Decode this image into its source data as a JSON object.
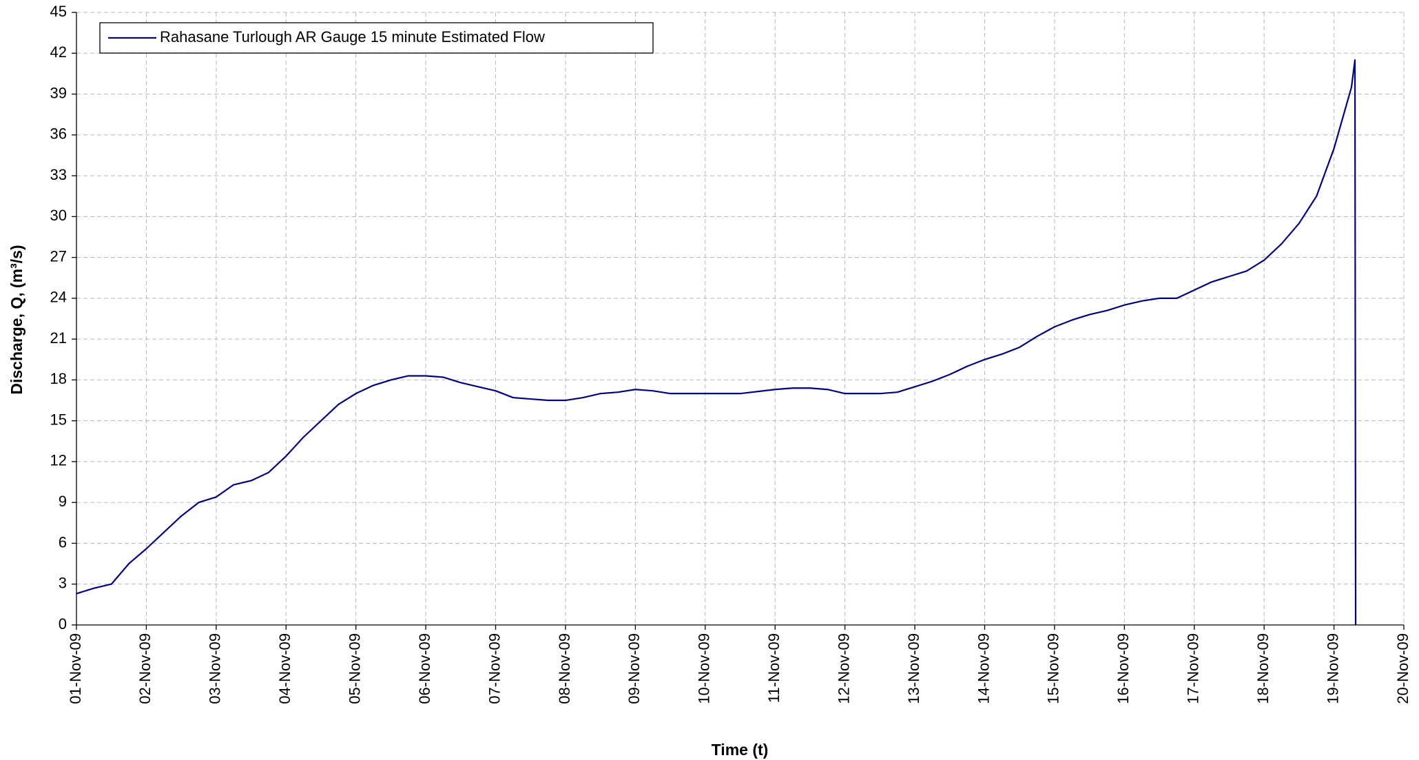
{
  "chart_data": {
    "type": "line",
    "x_label": "Time (t)",
    "y_label": "Discharge, Q, (m³/s)",
    "x": [
      1,
      1.25,
      1.5,
      1.75,
      2,
      2.25,
      2.5,
      2.75,
      3,
      3.25,
      3.5,
      3.75,
      4,
      4.25,
      4.5,
      4.75,
      5,
      5.25,
      5.5,
      5.75,
      6,
      6.25,
      6.5,
      6.75,
      7,
      7.25,
      7.5,
      7.75,
      8,
      8.25,
      8.5,
      8.75,
      9,
      9.25,
      9.5,
      10,
      10.5,
      11,
      11.25,
      11.5,
      11.75,
      12,
      12.5,
      12.75,
      13,
      13.25,
      13.5,
      13.75,
      14,
      14.25,
      14.5,
      14.75,
      15,
      15.25,
      15.5,
      15.75,
      16,
      16.25,
      16.5,
      16.75,
      17,
      17.25,
      17.5,
      17.75,
      18,
      18.25,
      18.5,
      18.75,
      19,
      19.25,
      19.3,
      19.31
    ],
    "series": [
      {
        "name": "Rahasane Turlough AR Gauge 15 minute Estimated Flow",
        "color": "#000080",
        "values": [
          2.3,
          2.7,
          3.0,
          4.5,
          5.6,
          6.8,
          8.0,
          9.0,
          9.4,
          10.3,
          10.6,
          11.2,
          12.4,
          13.8,
          15.0,
          16.2,
          17.0,
          17.6,
          18.0,
          18.3,
          18.3,
          18.2,
          17.8,
          17.5,
          17.2,
          16.7,
          16.6,
          16.5,
          16.5,
          16.7,
          17.0,
          17.1,
          17.3,
          17.2,
          17.0,
          17.0,
          17.0,
          17.3,
          17.4,
          17.4,
          17.3,
          17.0,
          17.0,
          17.1,
          17.5,
          17.9,
          18.4,
          19.0,
          19.5,
          19.9,
          20.4,
          21.2,
          21.9,
          22.4,
          22.8,
          23.1,
          23.5,
          23.8,
          24.0,
          24.0,
          24.6,
          25.2,
          25.6,
          26.0,
          26.8,
          28.0,
          29.5,
          31.5,
          35.0,
          39.5,
          41.5,
          0
        ]
      }
    ],
    "xlim": [
      1,
      20
    ],
    "xticks": [
      {
        "value": 1,
        "label": "01-Nov-09"
      },
      {
        "value": 2,
        "label": "02-Nov-09"
      },
      {
        "value": 3,
        "label": "03-Nov-09"
      },
      {
        "value": 4,
        "label": "04-Nov-09"
      },
      {
        "value": 5,
        "label": "05-Nov-09"
      },
      {
        "value": 6,
        "label": "06-Nov-09"
      },
      {
        "value": 7,
        "label": "07-Nov-09"
      },
      {
        "value": 8,
        "label": "08-Nov-09"
      },
      {
        "value": 9,
        "label": "09-Nov-09"
      },
      {
        "value": 10,
        "label": "10-Nov-09"
      },
      {
        "value": 11,
        "label": "11-Nov-09"
      },
      {
        "value": 12,
        "label": "12-Nov-09"
      },
      {
        "value": 13,
        "label": "13-Nov-09"
      },
      {
        "value": 14,
        "label": "14-Nov-09"
      },
      {
        "value": 15,
        "label": "15-Nov-09"
      },
      {
        "value": 16,
        "label": "16-Nov-09"
      },
      {
        "value": 17,
        "label": "17-Nov-09"
      },
      {
        "value": 18,
        "label": "18-Nov-09"
      },
      {
        "value": 19,
        "label": "19-Nov-09"
      },
      {
        "value": 20,
        "label": "20-Nov-09"
      }
    ],
    "ylim": [
      0,
      45
    ],
    "yticks": [
      0,
      3,
      6,
      9,
      12,
      15,
      18,
      21,
      24,
      27,
      30,
      33,
      36,
      39,
      42,
      45
    ],
    "grid": true,
    "legend": "top-left"
  }
}
